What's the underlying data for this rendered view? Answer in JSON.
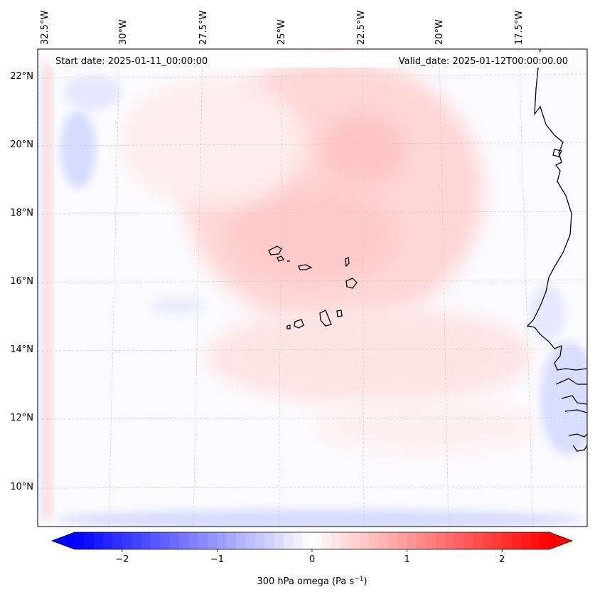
{
  "map": {
    "start_date": "Start date: 2025-01-11_00:00:00",
    "valid_date": "Valid_date: 2025-01-12T00:00:00.00",
    "lon_labels": [
      "32.5°W",
      "30°W",
      "27.5°W",
      "25°W",
      "22.5°W",
      "20°W",
      "17.5°W"
    ],
    "lat_labels": [
      "22°N",
      "20°N",
      "18°N",
      "16°N",
      "14°N",
      "12°N",
      "10°N"
    ]
  },
  "colorbar": {
    "label_main": "300 hPa omega (Pa s",
    "label_sup": "−1",
    "label_end": ")",
    "ticks": [
      "−2",
      "−1",
      "0",
      "1",
      "2"
    ],
    "tick_values": [
      -2,
      -1,
      0,
      1,
      2
    ],
    "range": [
      -2.5,
      2.5
    ],
    "cmap_low": "#0000ff",
    "cmap_mid": "#ffffff",
    "cmap_high": "#ff0000"
  }
}
